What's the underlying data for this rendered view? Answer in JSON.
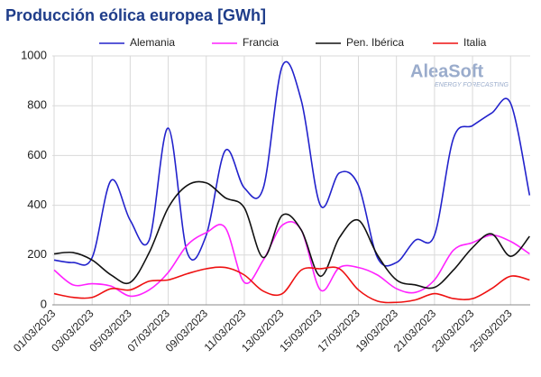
{
  "chart_data": {
    "type": "line",
    "title": "Producción eólica europea [GWh]",
    "logo": {
      "name": "AleaSoft",
      "tagline": "ENERGY FORECASTING"
    },
    "categories": [
      "01/03/2023",
      null,
      "03/03/2023",
      null,
      "05/03/2023",
      null,
      "07/03/2023",
      null,
      "09/03/2023",
      null,
      "11/03/2023",
      null,
      "13/03/2023",
      null,
      "15/03/2023",
      null,
      "17/03/2023",
      null,
      "19/03/2023",
      null,
      "21/03/2023",
      null,
      "23/03/2023",
      null,
      "25/03/2023",
      null
    ],
    "series": [
      {
        "name": "Alemania",
        "color": "#2222cc",
        "values": [
          180,
          170,
          190,
          500,
          340,
          260,
          710,
          210,
          280,
          620,
          470,
          470,
          960,
          820,
          400,
          530,
          480,
          190,
          170,
          260,
          280,
          670,
          720,
          770,
          810,
          440
        ]
      },
      {
        "name": "Francia",
        "color": "#ff22ff",
        "values": [
          140,
          80,
          85,
          75,
          35,
          60,
          130,
          240,
          290,
          310,
          90,
          180,
          320,
          300,
          60,
          150,
          150,
          120,
          65,
          50,
          100,
          220,
          250,
          280,
          255,
          205
        ]
      },
      {
        "name": "Pen. Ibérica",
        "color": "#111111",
        "values": [
          205,
          210,
          180,
          120,
          90,
          210,
          390,
          480,
          490,
          430,
          390,
          190,
          360,
          300,
          115,
          270,
          340,
          200,
          100,
          80,
          70,
          140,
          230,
          285,
          195,
          275
        ]
      },
      {
        "name": "Italia",
        "color": "#ee1111",
        "values": [
          45,
          30,
          30,
          65,
          60,
          95,
          100,
          125,
          145,
          150,
          120,
          55,
          45,
          140,
          145,
          145,
          60,
          15,
          10,
          20,
          45,
          25,
          25,
          65,
          115,
          100
        ]
      }
    ],
    "ylim": [
      0,
      1000
    ],
    "yticks": [
      0,
      200,
      400,
      600,
      800,
      1000
    ],
    "grid": true,
    "legend": "top"
  }
}
